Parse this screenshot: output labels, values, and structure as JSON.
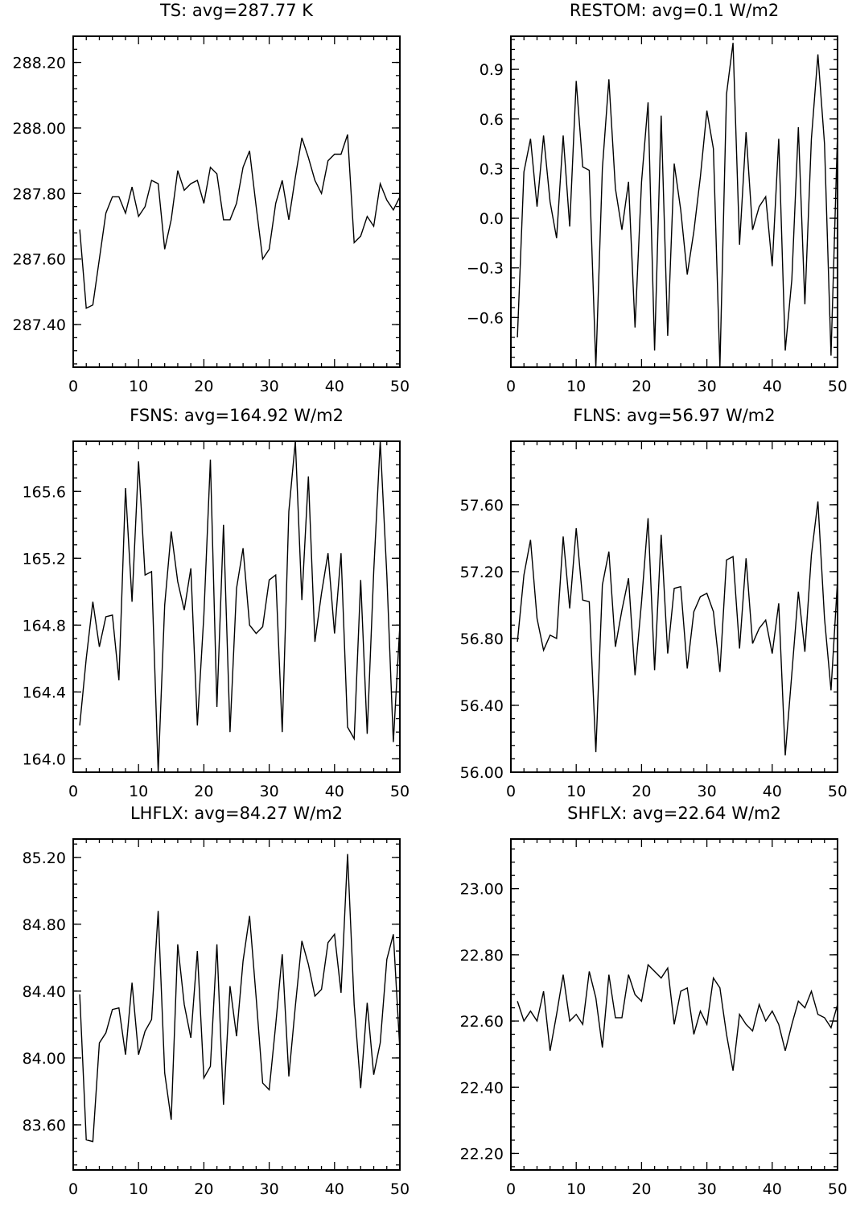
{
  "chart_data": [
    {
      "type": "line",
      "title": "TS: avg=287.77 K",
      "xlim": [
        0,
        50
      ],
      "ylim": [
        287.27,
        288.28
      ],
      "x_ticks": [
        "0",
        "10",
        "20",
        "30",
        "40",
        "50"
      ],
      "y_ticks": [
        {
          "value": 287.4,
          "label": "287.40"
        },
        {
          "value": 287.6,
          "label": "287.60"
        },
        {
          "value": 287.8,
          "label": "287.80"
        },
        {
          "value": 288.0,
          "label": "288.00"
        },
        {
          "value": 288.2,
          "label": "288.20"
        }
      ],
      "y_minor_step": 0.04,
      "series": [
        {
          "values": [
            287.69,
            287.45,
            287.46,
            287.6,
            287.74,
            287.79,
            287.79,
            287.74,
            287.82,
            287.73,
            287.76,
            287.84,
            287.83,
            287.63,
            287.72,
            287.87,
            287.81,
            287.83,
            287.84,
            287.77,
            287.88,
            287.86,
            287.72,
            287.72,
            287.77,
            287.88,
            287.93,
            287.76,
            287.6,
            287.63,
            287.77,
            287.84,
            287.72,
            287.85,
            287.97,
            287.91,
            287.84,
            287.8,
            287.9,
            287.92,
            287.92,
            287.98,
            287.65,
            287.67,
            287.73,
            287.7,
            287.83,
            287.78,
            287.75,
            287.79
          ]
        }
      ]
    },
    {
      "type": "line",
      "title": "RESTOM: avg=0.1 W/m2",
      "xlim": [
        0,
        50
      ],
      "ylim": [
        -0.9,
        1.1
      ],
      "x_ticks": [
        "0",
        "10",
        "20",
        "30",
        "40",
        "50"
      ],
      "y_ticks": [
        {
          "value": -0.6,
          "label": "−0.6"
        },
        {
          "value": -0.3,
          "label": "−0.3"
        },
        {
          "value": 0.0,
          "label": "0.0"
        },
        {
          "value": 0.3,
          "label": "0.3"
        },
        {
          "value": 0.6,
          "label": "0.6"
        },
        {
          "value": 0.9,
          "label": "0.9"
        }
      ],
      "y_minor_step": 0.06,
      "series": [
        {
          "values": [
            -0.72,
            0.28,
            0.48,
            0.07,
            0.5,
            0.1,
            -0.12,
            0.5,
            -0.05,
            0.83,
            0.31,
            0.29,
            -0.9,
            0.3,
            0.84,
            0.18,
            -0.07,
            0.22,
            -0.66,
            0.22,
            0.7,
            -0.8,
            0.62,
            -0.71,
            0.33,
            0.05,
            -0.34,
            -0.08,
            0.25,
            0.65,
            0.42,
            -0.9,
            0.75,
            1.06,
            -0.16,
            0.52,
            -0.07,
            0.07,
            0.13,
            -0.29,
            0.48,
            -0.8,
            -0.37,
            0.55,
            -0.52,
            0.48,
            0.99,
            0.45,
            -0.83,
            0.52
          ]
        }
      ]
    },
    {
      "type": "line",
      "title": "FSNS: avg=164.92 W/m2",
      "xlim": [
        0,
        50
      ],
      "ylim": [
        163.92,
        165.9
      ],
      "x_ticks": [
        "0",
        "10",
        "20",
        "30",
        "40",
        "50"
      ],
      "y_ticks": [
        {
          "value": 164.0,
          "label": "164.0"
        },
        {
          "value": 164.4,
          "label": "164.4"
        },
        {
          "value": 164.8,
          "label": "164.8"
        },
        {
          "value": 165.2,
          "label": "165.2"
        },
        {
          "value": 165.6,
          "label": "165.6"
        }
      ],
      "y_minor_step": 0.08,
      "series": [
        {
          "values": [
            164.2,
            164.6,
            164.94,
            164.67,
            164.85,
            164.86,
            164.47,
            165.62,
            164.94,
            165.78,
            165.1,
            165.12,
            163.92,
            164.92,
            165.36,
            165.06,
            164.89,
            165.14,
            164.2,
            164.86,
            165.79,
            164.31,
            165.4,
            164.16,
            165.02,
            165.26,
            164.8,
            164.75,
            164.79,
            165.07,
            165.1,
            164.16,
            165.48,
            165.9,
            164.95,
            165.69,
            164.7,
            164.99,
            165.23,
            164.75,
            165.23,
            164.19,
            164.12,
            165.07,
            164.15,
            165.12,
            165.9,
            165.1,
            164.1,
            164.8
          ]
        }
      ]
    },
    {
      "type": "line",
      "title": "FLNS: avg=56.97 W/m2",
      "xlim": [
        0,
        50
      ],
      "ylim": [
        56.0,
        57.98
      ],
      "x_ticks": [
        "0",
        "10",
        "20",
        "30",
        "40",
        "50"
      ],
      "y_ticks": [
        {
          "value": 56.0,
          "label": "56.00"
        },
        {
          "value": 56.4,
          "label": "56.40"
        },
        {
          "value": 56.8,
          "label": "56.80"
        },
        {
          "value": 57.2,
          "label": "57.20"
        },
        {
          "value": 57.6,
          "label": "57.60"
        }
      ],
      "y_minor_step": 0.08,
      "series": [
        {
          "values": [
            56.78,
            57.18,
            57.39,
            56.92,
            56.73,
            56.82,
            56.8,
            57.41,
            56.98,
            57.46,
            57.03,
            57.02,
            56.12,
            57.12,
            57.32,
            56.75,
            56.97,
            57.16,
            56.58,
            57.02,
            57.52,
            56.61,
            57.42,
            56.71,
            57.1,
            57.11,
            56.62,
            56.96,
            57.05,
            57.07,
            56.96,
            56.6,
            57.27,
            57.29,
            56.74,
            57.28,
            56.77,
            56.86,
            56.91,
            56.71,
            57.01,
            56.1,
            56.59,
            57.08,
            56.72,
            57.3,
            57.62,
            56.92,
            56.49,
            57.15
          ]
        }
      ]
    },
    {
      "type": "line",
      "title": "LHFLX: avg=84.27 W/m2",
      "xlim": [
        0,
        50
      ],
      "ylim": [
        83.33,
        85.31
      ],
      "x_ticks": [
        "0",
        "10",
        "20",
        "30",
        "40",
        "50"
      ],
      "y_ticks": [
        {
          "value": 83.6,
          "label": "83.60"
        },
        {
          "value": 84.0,
          "label": "84.00"
        },
        {
          "value": 84.4,
          "label": "84.40"
        },
        {
          "value": 84.8,
          "label": "84.80"
        },
        {
          "value": 85.2,
          "label": "85.20"
        }
      ],
      "y_minor_step": 0.08,
      "series": [
        {
          "values": [
            84.38,
            83.51,
            83.5,
            84.09,
            84.15,
            84.29,
            84.3,
            84.02,
            84.45,
            84.02,
            84.16,
            84.23,
            84.88,
            83.91,
            83.63,
            84.68,
            84.32,
            84.12,
            84.64,
            83.88,
            83.95,
            84.68,
            83.72,
            84.43,
            84.13,
            84.58,
            84.85,
            84.36,
            83.85,
            83.81,
            84.2,
            84.62,
            83.89,
            84.31,
            84.7,
            84.56,
            84.37,
            84.41,
            84.69,
            84.74,
            84.39,
            85.22,
            84.32,
            83.82,
            84.33,
            83.9,
            84.09,
            84.59,
            84.74,
            84.05
          ]
        }
      ]
    },
    {
      "type": "line",
      "title": "SHFLX: avg=22.64 W/m2",
      "xlim": [
        0,
        50
      ],
      "ylim": [
        22.15,
        23.15
      ],
      "x_ticks": [
        "0",
        "10",
        "20",
        "30",
        "40",
        "50"
      ],
      "y_ticks": [
        {
          "value": 22.2,
          "label": "22.20"
        },
        {
          "value": 22.4,
          "label": "22.40"
        },
        {
          "value": 22.6,
          "label": "22.60"
        },
        {
          "value": 22.8,
          "label": "22.80"
        },
        {
          "value": 23.0,
          "label": "23.00"
        }
      ],
      "y_minor_step": 0.04,
      "series": [
        {
          "values": [
            22.66,
            22.6,
            22.63,
            22.6,
            22.69,
            22.51,
            22.62,
            22.74,
            22.6,
            22.62,
            22.59,
            22.75,
            22.67,
            22.52,
            22.74,
            22.61,
            22.61,
            22.74,
            22.68,
            22.66,
            22.77,
            22.75,
            22.73,
            22.76,
            22.59,
            22.69,
            22.7,
            22.56,
            22.63,
            22.59,
            22.73,
            22.7,
            22.56,
            22.45,
            22.62,
            22.59,
            22.57,
            22.65,
            22.6,
            22.63,
            22.59,
            22.51,
            22.59,
            22.66,
            22.64,
            22.69,
            22.62,
            22.61,
            22.58,
            22.65
          ]
        }
      ]
    }
  ]
}
